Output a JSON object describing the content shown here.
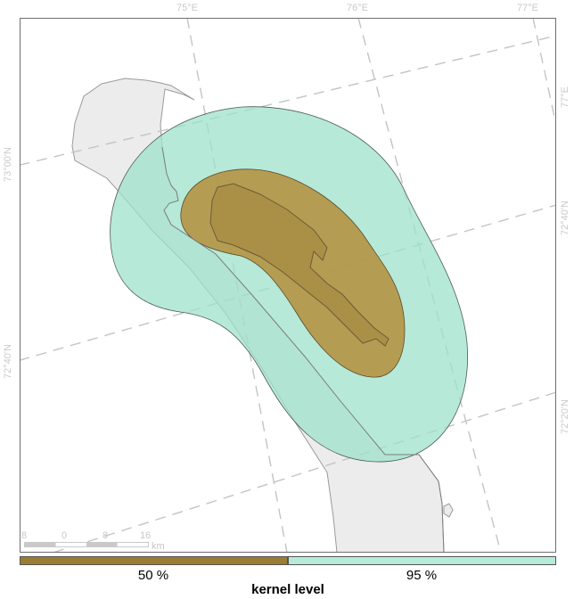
{
  "map": {
    "grid_labels": {
      "top": [
        "75°E",
        "76°E",
        "77°E"
      ],
      "right": [
        "77°E",
        "72°40'N",
        "72°20'N"
      ],
      "left": [
        "73°00'N",
        "72°40'N"
      ]
    }
  },
  "scalebar": {
    "ticks": [
      "8",
      "0",
      "8",
      "16"
    ],
    "unit": "km"
  },
  "legend": {
    "title": "kernel level",
    "items": [
      {
        "label": "50 %",
        "color": "#9a7d32"
      },
      {
        "label": "95 %",
        "color": "#b6ebda"
      }
    ]
  },
  "colors": {
    "land": "#ececec",
    "coastline": "#9a9a9a",
    "grid": "#c4c4c4",
    "kernel_95": "#9ee2cb",
    "kernel_50": "#b48f3c",
    "frame": "#6f6f6f"
  }
}
